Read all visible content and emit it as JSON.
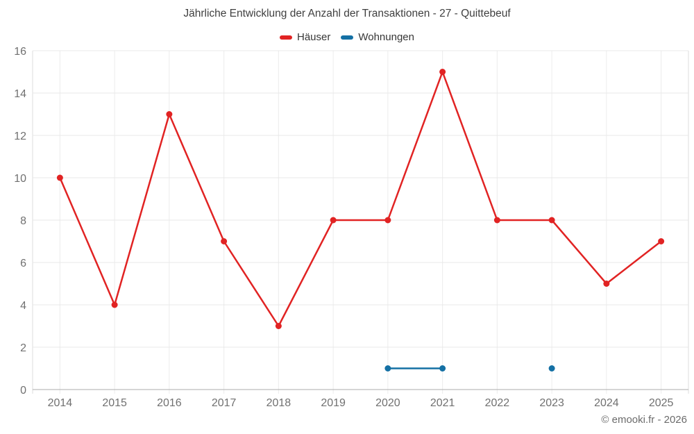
{
  "title": "Jährliche Entwicklung der Anzahl der Transaktionen - 27 - Quittebeuf",
  "legend": [
    {
      "label": "Häuser",
      "color": "#e12323"
    },
    {
      "label": "Wohnungen",
      "color": "#1470a4"
    }
  ],
  "footer": {
    "text": "© emooki.fr - 2026"
  },
  "colors": {
    "haeuser": "#e12323",
    "wohnungen": "#1470a4",
    "grid": "#e8e8e8",
    "grid_vertical": "#ececec",
    "axis_line": "#ababab",
    "axis_labels": "#707070",
    "title_text": "#3f3f3f"
  },
  "chart_data": {
    "type": "line",
    "title": "Jährliche Entwicklung der Anzahl der Transaktionen - 27 - Quittebeuf",
    "categories": [
      "2014",
      "2015",
      "2016",
      "2017",
      "2018",
      "2019",
      "2020",
      "2021",
      "2022",
      "2023",
      "2024",
      "2025"
    ],
    "series": [
      {
        "name": "Häuser",
        "color": "#e12323",
        "values": [
          10,
          4,
          13,
          7,
          3,
          8,
          8,
          15,
          8,
          8,
          5,
          7
        ]
      },
      {
        "name": "Wohnungen",
        "color": "#1470a4",
        "values": [
          null,
          null,
          null,
          null,
          null,
          null,
          1,
          1,
          null,
          1,
          null,
          null
        ]
      }
    ],
    "xlabel": "",
    "ylabel": "",
    "ylim": [
      0,
      16
    ],
    "ytick_step": 2,
    "grid": true,
    "legend_position": "top",
    "marker": "circle"
  }
}
